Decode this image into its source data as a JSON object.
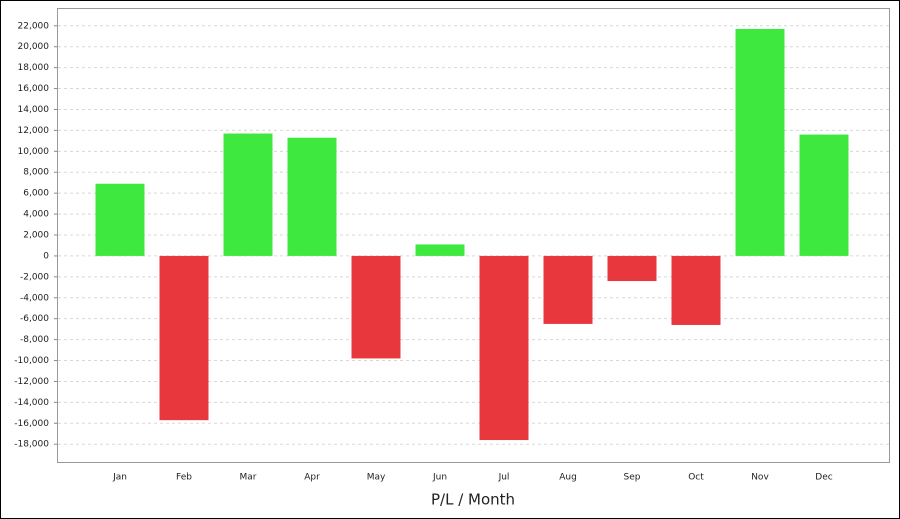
{
  "chart_data": {
    "type": "bar",
    "x_label": "P/L / Month",
    "categories": [
      "Jan",
      "Feb",
      "Mar",
      "Apr",
      "May",
      "Jun",
      "Jul",
      "Aug",
      "Sep",
      "Oct",
      "Nov",
      "Dec"
    ],
    "values": [
      6900,
      -15700,
      11700,
      11300,
      -9800,
      1100,
      -17600,
      -6500,
      -2400,
      -6600,
      21700,
      11600
    ],
    "positive_color": "#3fe83f",
    "negative_color": "#e8383e",
    "ylim": [
      -19700,
      23700
    ],
    "yticks": [
      {
        "value": -18000,
        "label": "-18,000"
      },
      {
        "value": -16000,
        "label": "-16,000"
      },
      {
        "value": -14000,
        "label": "-14,000"
      },
      {
        "value": -12000,
        "label": "-12,000"
      },
      {
        "value": -10000,
        "label": "-10,000"
      },
      {
        "value": -8000,
        "label": "-8,000"
      },
      {
        "value": -6000,
        "label": "-6,000"
      },
      {
        "value": -4000,
        "label": "-4,000"
      },
      {
        "value": -2000,
        "label": "-2,000"
      },
      0,
      {
        "value": 2000,
        "label": "2,000"
      },
      {
        "value": 4000,
        "label": "4,000"
      },
      {
        "value": 6000,
        "label": "6,000"
      },
      {
        "value": 8000,
        "label": "8,000"
      },
      {
        "value": 10000,
        "label": "10,000"
      },
      {
        "value": 12000,
        "label": "12,000"
      },
      {
        "value": 14000,
        "label": "14,000"
      },
      {
        "value": 16000,
        "label": "16,000"
      },
      {
        "value": 18000,
        "label": "18,000"
      },
      {
        "value": 20000,
        "label": "20,000"
      },
      {
        "value": 22000,
        "label": "22,000"
      }
    ],
    "grid": true
  }
}
